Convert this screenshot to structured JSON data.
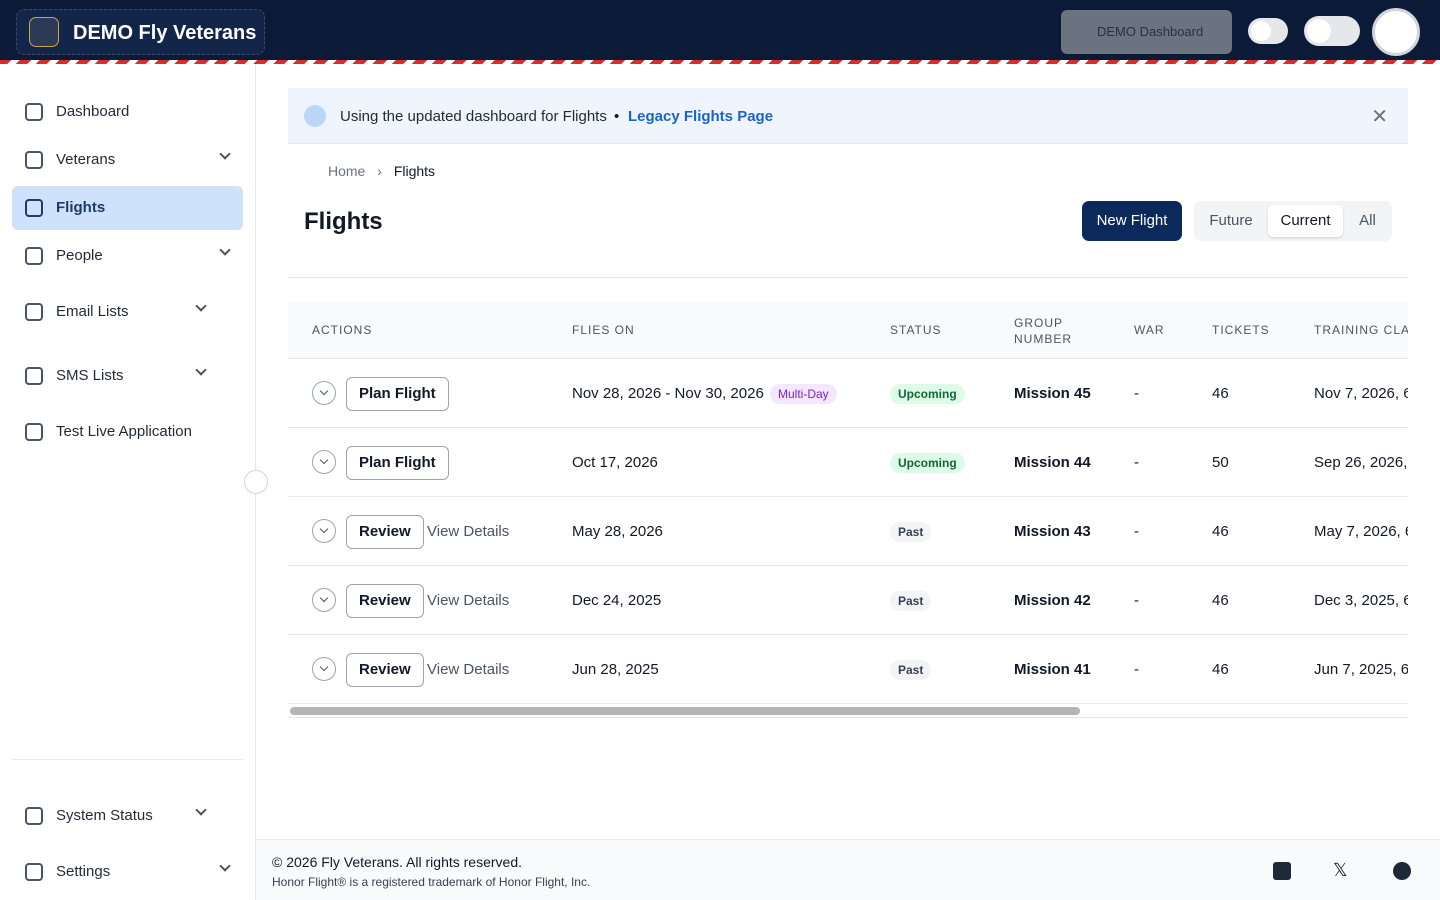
{
  "header": {
    "brand": "DEMO Fly Veterans",
    "dashboard_select": "DEMO Dashboard"
  },
  "sidebar": {
    "items": [
      {
        "label": "Dashboard",
        "expandable": false,
        "active": false
      },
      {
        "label": "Veterans",
        "expandable": true,
        "active": false
      },
      {
        "label": "Flights",
        "expandable": false,
        "active": true
      },
      {
        "label": "People",
        "expandable": true,
        "active": false
      },
      {
        "label": "Email Lists",
        "expandable": true,
        "active": false
      },
      {
        "label": "SMS Lists",
        "expandable": true,
        "active": false
      },
      {
        "label": "Test Live Application",
        "expandable": false,
        "active": false
      }
    ],
    "bottom_items": [
      {
        "label": "System Status"
      },
      {
        "label": "Settings"
      }
    ]
  },
  "banner": {
    "text": "Using the updated dashboard for Flights",
    "link": "Legacy Flights Page"
  },
  "breadcrumb": [
    "Home",
    "Flights"
  ],
  "page": {
    "title": "Flights",
    "new_button": "New Flight",
    "filters": [
      "Future",
      "Current",
      "All"
    ],
    "active_filter": 1
  },
  "table": {
    "columns": [
      "ACTIONS",
      "FLIES ON",
      "STATUS",
      "GROUP NUMBER",
      "WAR",
      "TICKETS",
      "TRAINING CLA"
    ],
    "rows": [
      {
        "action": "Plan Flight",
        "flies_on": "Nov 28, 2026 - Nov 30, 2026",
        "badge": "Multi-Day",
        "status": "Upcoming",
        "group": "Mission 45",
        "war": "-",
        "tickets": "46",
        "training": "Nov 7, 2026, 6"
      },
      {
        "action": "Plan Flight",
        "flies_on": "Oct 17, 2026",
        "status": "Upcoming",
        "group": "Mission 44",
        "war": "-",
        "tickets": "50",
        "training": "Sep 26, 2026,"
      },
      {
        "action": "Review",
        "details": "View Details",
        "flies_on": "May 28, 2026",
        "status": "Past",
        "group": "Mission 43",
        "war": "-",
        "tickets": "46",
        "training": "May 7, 2026, 6"
      },
      {
        "action": "Review",
        "details": "View Details",
        "flies_on": "Dec 24, 2025",
        "status": "Past",
        "group": "Mission 42",
        "war": "-",
        "tickets": "46",
        "training": "Dec 3, 2025, 6"
      },
      {
        "action": "Review",
        "details": "View Details",
        "flies_on": "Jun 28, 2025",
        "status": "Past",
        "group": "Mission 41",
        "war": "-",
        "tickets": "46",
        "training": "Jun 7, 2025, 6"
      }
    ]
  },
  "footer": {
    "copyright": "© 2026 Fly Veterans. All rights reserved.",
    "trademark": "Honor Flight® is a registered trademark of Honor Flight, Inc."
  }
}
